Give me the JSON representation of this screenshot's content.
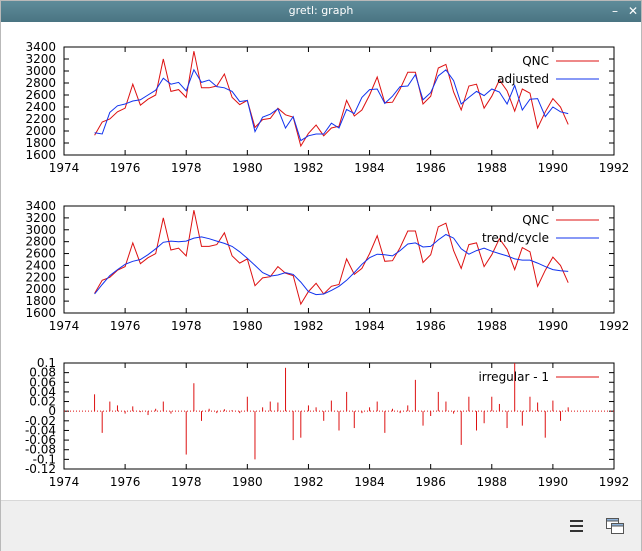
{
  "window": {
    "title": "gretl: graph",
    "minimize_glyph": "–",
    "close_glyph": "✕"
  },
  "toolbar": {
    "icons": [
      "menu-icon",
      "windows-icon"
    ]
  },
  "colors": {
    "series_red": "#dd1111",
    "series_blue": "#1133ee",
    "titlebar": "#5a8693"
  },
  "chart_data": [
    {
      "type": "line",
      "title": "",
      "xlabel": "",
      "ylabel": "",
      "xlim": [
        1974,
        1992
      ],
      "ylim": [
        1600,
        3400
      ],
      "xticks": [
        1974,
        1976,
        1978,
        1980,
        1982,
        1984,
        1986,
        1988,
        1990,
        1992
      ],
      "yticks": [
        1600,
        1800,
        2000,
        2200,
        2400,
        2600,
        2800,
        3000,
        3200,
        3400
      ],
      "legend_position": "top-right",
      "x_start": 1975.0,
      "x_step": 0.25,
      "series": [
        {
          "name": "QNC",
          "color": "#dd1111",
          "values": [
            1930,
            2150,
            2200,
            2320,
            2380,
            2780,
            2430,
            2530,
            2600,
            3200,
            2660,
            2690,
            2560,
            3330,
            2720,
            2720,
            2750,
            2950,
            2560,
            2440,
            2510,
            2060,
            2190,
            2210,
            2380,
            2270,
            2230,
            1750,
            1960,
            2100,
            1920,
            2050,
            2080,
            2510,
            2250,
            2350,
            2600,
            2900,
            2470,
            2480,
            2700,
            2980,
            2980,
            2450,
            2580,
            3050,
            3110,
            2650,
            2350,
            2750,
            2780,
            2380,
            2580,
            2850,
            2670,
            2330,
            2700,
            2630,
            2050,
            2320,
            2540,
            2400,
            2110
          ]
        },
        {
          "name": "adjusted",
          "color": "#1133ee",
          "values": [
            1970,
            1950,
            2310,
            2420,
            2450,
            2500,
            2520,
            2600,
            2680,
            2880,
            2780,
            2810,
            2670,
            3020,
            2810,
            2850,
            2740,
            2720,
            2660,
            2490,
            2510,
            1990,
            2230,
            2280,
            2370,
            2050,
            2240,
            1840,
            1920,
            1950,
            1950,
            2130,
            2050,
            2360,
            2290,
            2560,
            2690,
            2700,
            2460,
            2580,
            2740,
            2750,
            2940,
            2520,
            2640,
            2920,
            3020,
            2840,
            2450,
            2560,
            2660,
            2590,
            2700,
            2650,
            2450,
            2760,
            2350,
            2530,
            2540,
            2240,
            2400,
            2320,
            2290
          ]
        }
      ]
    },
    {
      "type": "line",
      "title": "",
      "xlabel": "",
      "ylabel": "",
      "xlim": [
        1974,
        1992
      ],
      "ylim": [
        1600,
        3400
      ],
      "xticks": [
        1974,
        1976,
        1978,
        1980,
        1982,
        1984,
        1986,
        1988,
        1990,
        1992
      ],
      "yticks": [
        1600,
        1800,
        2000,
        2200,
        2400,
        2600,
        2800,
        3000,
        3200,
        3400
      ],
      "legend_position": "top-right",
      "x_start": 1975.0,
      "x_step": 0.25,
      "series": [
        {
          "name": "QNC",
          "color": "#dd1111",
          "values": [
            1930,
            2150,
            2200,
            2320,
            2380,
            2780,
            2430,
            2530,
            2600,
            3200,
            2660,
            2690,
            2560,
            3330,
            2720,
            2720,
            2750,
            2950,
            2560,
            2440,
            2510,
            2060,
            2190,
            2210,
            2380,
            2270,
            2230,
            1750,
            1960,
            2100,
            1920,
            2050,
            2080,
            2510,
            2250,
            2350,
            2600,
            2900,
            2470,
            2480,
            2700,
            2980,
            2980,
            2450,
            2580,
            3050,
            3110,
            2650,
            2350,
            2750,
            2780,
            2380,
            2580,
            2850,
            2670,
            2330,
            2700,
            2630,
            2050,
            2320,
            2540,
            2400,
            2110
          ]
        },
        {
          "name": "trend/cycle",
          "color": "#1133ee",
          "values": [
            1920,
            2080,
            2230,
            2330,
            2420,
            2470,
            2500,
            2580,
            2680,
            2790,
            2810,
            2800,
            2810,
            2860,
            2880,
            2850,
            2810,
            2770,
            2720,
            2630,
            2520,
            2400,
            2280,
            2220,
            2240,
            2280,
            2250,
            2120,
            1960,
            1910,
            1920,
            1980,
            2050,
            2150,
            2280,
            2420,
            2530,
            2590,
            2580,
            2560,
            2650,
            2760,
            2780,
            2710,
            2720,
            2830,
            2920,
            2860,
            2680,
            2590,
            2650,
            2690,
            2640,
            2600,
            2560,
            2510,
            2490,
            2490,
            2440,
            2380,
            2330,
            2310,
            2300
          ]
        }
      ]
    },
    {
      "type": "bar",
      "title": "",
      "xlabel": "",
      "ylabel": "",
      "xlim": [
        1974,
        1992
      ],
      "ylim": [
        -0.12,
        0.1
      ],
      "xticks": [
        1974,
        1976,
        1978,
        1980,
        1982,
        1984,
        1986,
        1988,
        1990,
        1992
      ],
      "yticks": [
        -0.12,
        -0.1,
        -0.08,
        -0.06,
        -0.04,
        -0.02,
        0,
        0.02,
        0.04,
        0.06,
        0.08,
        0.1
      ],
      "ytick_labels": [
        "-0.12",
        "-0.1",
        "-0.08",
        "-0.06",
        "-0.04",
        "-0.02",
        "0",
        "0.02",
        "0.04",
        "0.06",
        "0.08",
        "0.1"
      ],
      "legend_position": "top-right",
      "x_start": 1975.0,
      "x_step": 0.25,
      "series": [
        {
          "name": "irregular - 1",
          "color": "#dd1111",
          "values": [
            0.035,
            -0.045,
            0.02,
            0.012,
            -0.005,
            0.01,
            -0.002,
            -0.008,
            0.005,
            0.02,
            -0.005,
            0.0,
            -0.09,
            0.058,
            -0.02,
            0.005,
            -0.004,
            0.004,
            0.002,
            -0.004,
            0.03,
            -0.1,
            0.008,
            0.02,
            0.018,
            0.09,
            -0.06,
            -0.055,
            0.012,
            0.008,
            -0.02,
            0.022,
            -0.04,
            0.04,
            -0.035,
            -0.004,
            0.008,
            0.02,
            -0.045,
            0.005,
            -0.004,
            0.012,
            0.065,
            -0.03,
            -0.01,
            0.04,
            0.02,
            -0.005,
            -0.07,
            0.03,
            -0.04,
            -0.025,
            0.03,
            0.015,
            -0.035,
            0.1,
            -0.03,
            0.03,
            0.018,
            -0.055,
            0.022,
            -0.02,
            0.008
          ]
        }
      ]
    }
  ]
}
